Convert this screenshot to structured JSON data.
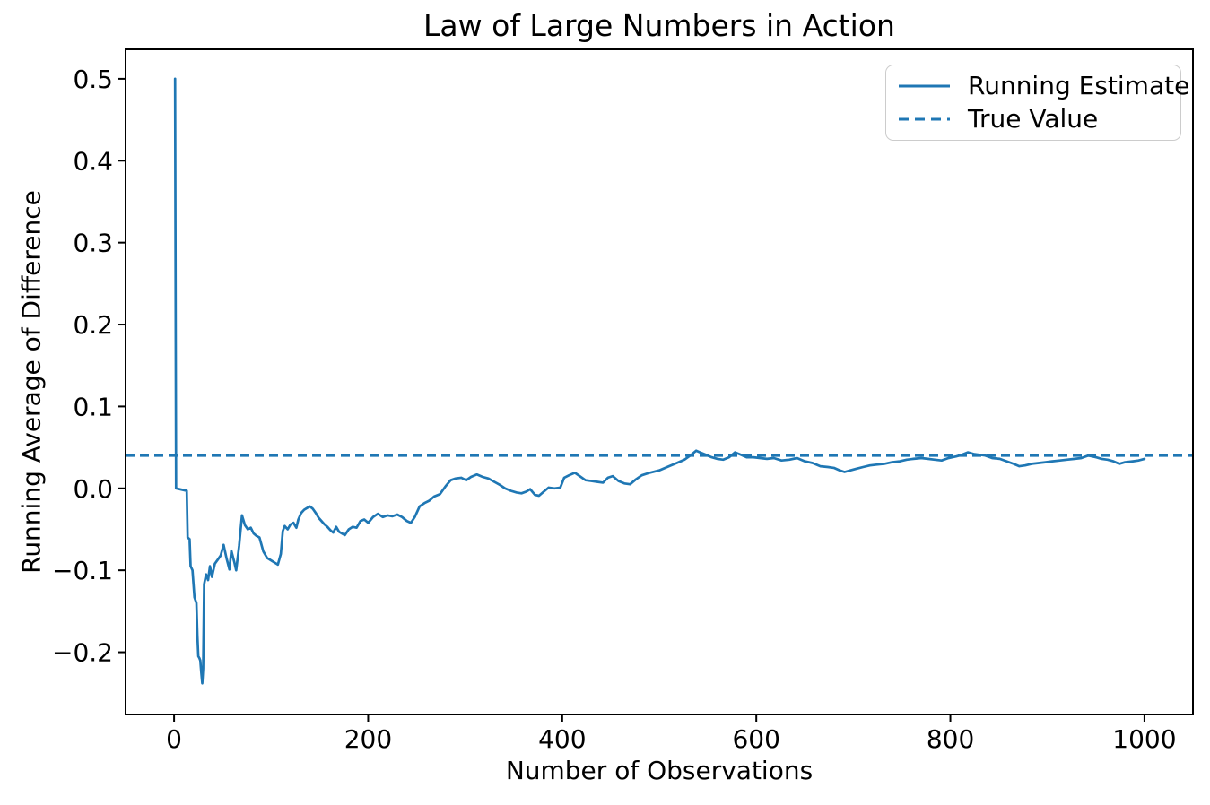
{
  "figure": {
    "background": "#ffffff",
    "text_color": "#000000",
    "accent_color": "#1f77b4"
  },
  "legend": {
    "position": "upper right",
    "items": [
      {
        "label": "Running Estimate",
        "style": "solid",
        "color": "#1f77b4"
      },
      {
        "label": "True Value",
        "style": "dashed",
        "color": "#1f77b4"
      }
    ]
  },
  "chart_data": {
    "type": "line",
    "title": "Law of Large Numbers in Action",
    "xlabel": "Number of Observations",
    "ylabel": "Running Average of Difference",
    "xlim": [
      -50,
      1050
    ],
    "ylim": [
      -0.276,
      0.536
    ],
    "x_ticks": [
      0,
      200,
      400,
      600,
      800,
      1000
    ],
    "x_tick_labels": [
      "0",
      "200",
      "400",
      "600",
      "800",
      "1000"
    ],
    "y_ticks": [
      -0.2,
      -0.1,
      0.0,
      0.1,
      0.2,
      0.3,
      0.4,
      0.5
    ],
    "y_tick_labels": [
      "−0.2",
      "−0.1",
      "0.0",
      "0.1",
      "0.2",
      "0.3",
      "0.4",
      "0.5"
    ],
    "grid": false,
    "legend_position": "upper right",
    "true_value": 0.04,
    "series": [
      {
        "name": "Running Estimate",
        "type": "line",
        "style": "solid",
        "color": "#1f77b4",
        "points": [
          [
            1,
            0.5
          ],
          [
            2,
            0.0
          ],
          [
            13,
            -0.003
          ],
          [
            14,
            -0.06
          ],
          [
            16,
            -0.062
          ],
          [
            17,
            -0.095
          ],
          [
            19,
            -0.1
          ],
          [
            21,
            -0.133
          ],
          [
            23,
            -0.14
          ],
          [
            24,
            -0.18
          ],
          [
            25,
            -0.205
          ],
          [
            26,
            -0.207
          ],
          [
            27,
            -0.21
          ],
          [
            28,
            -0.225
          ],
          [
            29,
            -0.238
          ],
          [
            30,
            -0.22
          ],
          [
            31,
            -0.117
          ],
          [
            33,
            -0.105
          ],
          [
            35,
            -0.112
          ],
          [
            37,
            -0.095
          ],
          [
            39,
            -0.108
          ],
          [
            42,
            -0.092
          ],
          [
            45,
            -0.087
          ],
          [
            48,
            -0.082
          ],
          [
            51,
            -0.069
          ],
          [
            54,
            -0.085
          ],
          [
            57,
            -0.099
          ],
          [
            59,
            -0.076
          ],
          [
            62,
            -0.09
          ],
          [
            64,
            -0.1
          ],
          [
            67,
            -0.07
          ],
          [
            70,
            -0.033
          ],
          [
            73,
            -0.045
          ],
          [
            76,
            -0.05
          ],
          [
            79,
            -0.048
          ],
          [
            82,
            -0.055
          ],
          [
            85,
            -0.058
          ],
          [
            88,
            -0.06
          ],
          [
            92,
            -0.077
          ],
          [
            96,
            -0.085
          ],
          [
            100,
            -0.088
          ],
          [
            104,
            -0.091
          ],
          [
            107,
            -0.093
          ],
          [
            110,
            -0.08
          ],
          [
            112,
            -0.052
          ],
          [
            114,
            -0.046
          ],
          [
            117,
            -0.05
          ],
          [
            120,
            -0.044
          ],
          [
            123,
            -0.042
          ],
          [
            126,
            -0.048
          ],
          [
            128,
            -0.038
          ],
          [
            131,
            -0.03
          ],
          [
            134,
            -0.026
          ],
          [
            137,
            -0.024
          ],
          [
            140,
            -0.022
          ],
          [
            143,
            -0.025
          ],
          [
            146,
            -0.03
          ],
          [
            149,
            -0.036
          ],
          [
            152,
            -0.04
          ],
          [
            155,
            -0.044
          ],
          [
            158,
            -0.047
          ],
          [
            161,
            -0.051
          ],
          [
            164,
            -0.054
          ],
          [
            167,
            -0.047
          ],
          [
            170,
            -0.053
          ],
          [
            173,
            -0.055
          ],
          [
            176,
            -0.057
          ],
          [
            180,
            -0.05
          ],
          [
            184,
            -0.047
          ],
          [
            188,
            -0.048
          ],
          [
            192,
            -0.04
          ],
          [
            196,
            -0.038
          ],
          [
            200,
            -0.042
          ],
          [
            205,
            -0.035
          ],
          [
            210,
            -0.031
          ],
          [
            215,
            -0.035
          ],
          [
            220,
            -0.033
          ],
          [
            225,
            -0.034
          ],
          [
            230,
            -0.032
          ],
          [
            235,
            -0.035
          ],
          [
            240,
            -0.04
          ],
          [
            244,
            -0.042
          ],
          [
            248,
            -0.035
          ],
          [
            253,
            -0.022
          ],
          [
            258,
            -0.018
          ],
          [
            263,
            -0.015
          ],
          [
            268,
            -0.01
          ],
          [
            274,
            -0.007
          ],
          [
            280,
            0.003
          ],
          [
            285,
            0.01
          ],
          [
            290,
            0.012
          ],
          [
            296,
            0.013
          ],
          [
            301,
            0.01
          ],
          [
            306,
            0.014
          ],
          [
            312,
            0.017
          ],
          [
            318,
            0.014
          ],
          [
            324,
            0.012
          ],
          [
            330,
            0.008
          ],
          [
            336,
            0.004
          ],
          [
            341,
            0.0
          ],
          [
            347,
            -0.003
          ],
          [
            353,
            -0.005
          ],
          [
            358,
            -0.006
          ],
          [
            363,
            -0.004
          ],
          [
            367,
            -0.001
          ],
          [
            372,
            -0.008
          ],
          [
            376,
            -0.009
          ],
          [
            381,
            -0.004
          ],
          [
            386,
            0.001
          ],
          [
            392,
            0.0
          ],
          [
            398,
            0.001
          ],
          [
            402,
            0.013
          ],
          [
            407,
            0.016
          ],
          [
            413,
            0.019
          ],
          [
            418,
            0.015
          ],
          [
            424,
            0.01
          ],
          [
            430,
            0.009
          ],
          [
            436,
            0.008
          ],
          [
            442,
            0.007
          ],
          [
            447,
            0.013
          ],
          [
            452,
            0.015
          ],
          [
            458,
            0.009
          ],
          [
            464,
            0.006
          ],
          [
            470,
            0.005
          ],
          [
            476,
            0.011
          ],
          [
            482,
            0.016
          ],
          [
            490,
            0.019
          ],
          [
            500,
            0.022
          ],
          [
            510,
            0.027
          ],
          [
            518,
            0.031
          ],
          [
            526,
            0.035
          ],
          [
            532,
            0.04
          ],
          [
            538,
            0.046
          ],
          [
            542,
            0.044
          ],
          [
            548,
            0.041
          ],
          [
            554,
            0.038
          ],
          [
            560,
            0.036
          ],
          [
            566,
            0.035
          ],
          [
            572,
            0.038
          ],
          [
            578,
            0.044
          ],
          [
            584,
            0.041
          ],
          [
            590,
            0.038
          ],
          [
            597,
            0.038
          ],
          [
            604,
            0.037
          ],
          [
            611,
            0.036
          ],
          [
            618,
            0.037
          ],
          [
            626,
            0.034
          ],
          [
            634,
            0.035
          ],
          [
            642,
            0.037
          ],
          [
            650,
            0.033
          ],
          [
            658,
            0.031
          ],
          [
            666,
            0.027
          ],
          [
            674,
            0.026
          ],
          [
            680,
            0.025
          ],
          [
            686,
            0.022
          ],
          [
            691,
            0.02
          ],
          [
            697,
            0.022
          ],
          [
            703,
            0.024
          ],
          [
            710,
            0.026
          ],
          [
            717,
            0.028
          ],
          [
            724,
            0.029
          ],
          [
            732,
            0.03
          ],
          [
            740,
            0.032
          ],
          [
            748,
            0.033
          ],
          [
            755,
            0.035
          ],
          [
            762,
            0.036
          ],
          [
            770,
            0.037
          ],
          [
            777,
            0.036
          ],
          [
            784,
            0.035
          ],
          [
            791,
            0.034
          ],
          [
            798,
            0.037
          ],
          [
            806,
            0.039
          ],
          [
            812,
            0.041
          ],
          [
            818,
            0.044
          ],
          [
            824,
            0.042
          ],
          [
            830,
            0.041
          ],
          [
            836,
            0.04
          ],
          [
            843,
            0.037
          ],
          [
            851,
            0.036
          ],
          [
            858,
            0.033
          ],
          [
            865,
            0.03
          ],
          [
            871,
            0.027
          ],
          [
            877,
            0.028
          ],
          [
            884,
            0.03
          ],
          [
            891,
            0.031
          ],
          [
            898,
            0.032
          ],
          [
            905,
            0.033
          ],
          [
            913,
            0.034
          ],
          [
            920,
            0.035
          ],
          [
            928,
            0.036
          ],
          [
            935,
            0.037
          ],
          [
            942,
            0.04
          ],
          [
            950,
            0.038
          ],
          [
            956,
            0.036
          ],
          [
            962,
            0.035
          ],
          [
            968,
            0.033
          ],
          [
            974,
            0.03
          ],
          [
            980,
            0.032
          ],
          [
            988,
            0.033
          ],
          [
            994,
            0.034
          ],
          [
            1000,
            0.036
          ]
        ]
      },
      {
        "name": "True Value",
        "type": "hline",
        "style": "dashed",
        "color": "#1f77b4",
        "y": 0.04
      }
    ]
  }
}
